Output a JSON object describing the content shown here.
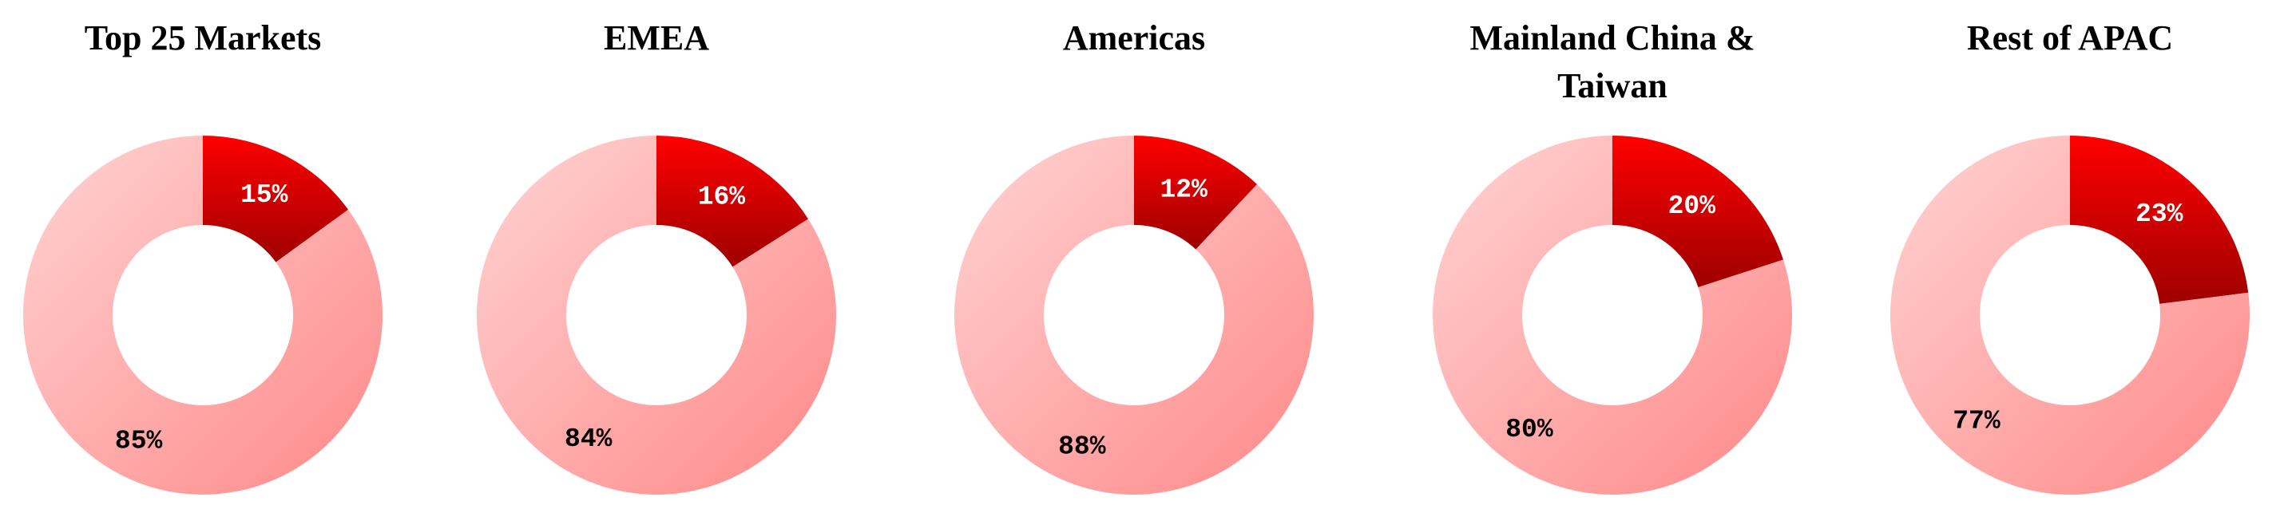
{
  "chart_data": [
    {
      "type": "donut",
      "title": "Top 25 Markets",
      "categories": [
        null,
        null
      ],
      "values": [
        15,
        85
      ],
      "value_labels": [
        "15%",
        "85%"
      ],
      "gradients": [
        [
          "#ff0000",
          "#9e0000"
        ],
        [
          "#ffd3d3",
          "#ff8888"
        ]
      ]
    },
    {
      "type": "donut",
      "title": "EMEA",
      "categories": [
        null,
        null
      ],
      "values": [
        16,
        84
      ],
      "value_labels": [
        "16%",
        "84%"
      ],
      "gradients": [
        [
          "#ff0000",
          "#9e0000"
        ],
        [
          "#ffd3d3",
          "#ff8888"
        ]
      ]
    },
    {
      "type": "donut",
      "title": "Americas",
      "categories": [
        null,
        null
      ],
      "values": [
        12,
        88
      ],
      "value_labels": [
        "12%",
        "88%"
      ],
      "gradients": [
        [
          "#ff0000",
          "#9e0000"
        ],
        [
          "#ffd3d3",
          "#ff8888"
        ]
      ]
    },
    {
      "type": "donut",
      "title": "Mainland China & Taiwan",
      "categories": [
        null,
        null
      ],
      "values": [
        20,
        80
      ],
      "value_labels": [
        "20%",
        "80%"
      ],
      "gradients": [
        [
          "#ff0000",
          "#9e0000"
        ],
        [
          "#ffd3d3",
          "#ff8888"
        ]
      ]
    },
    {
      "type": "donut",
      "title": "Rest of APAC",
      "categories": [
        null,
        null
      ],
      "values": [
        23,
        77
      ],
      "value_labels": [
        "23%",
        "77%"
      ],
      "gradients": [
        [
          "#ff0000",
          "#9e0000"
        ],
        [
          "#ffd3d3",
          "#ff8888"
        ]
      ]
    }
  ]
}
